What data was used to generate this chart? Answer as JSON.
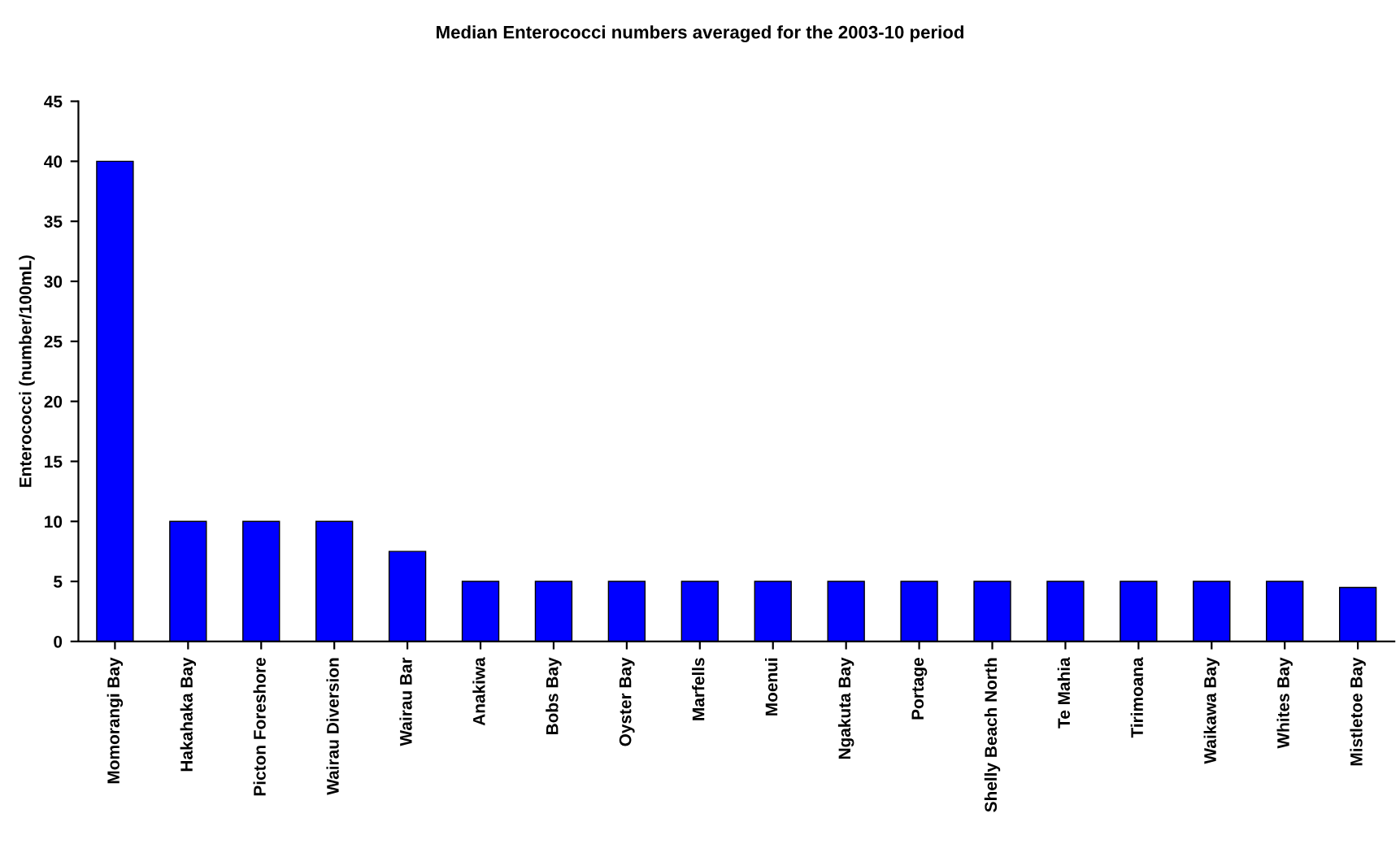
{
  "chart_data": {
    "type": "bar",
    "title": "Median Enterococci numbers averaged for the 2003-10 period",
    "ylabel": "Enterococci (number/100mL)",
    "categories": [
      "Momorangi Bay",
      "Hakahaka Bay",
      "Picton Foreshore",
      "Wairau Diversion",
      "Wairau Bar",
      "Anakiwa",
      "Bobs Bay",
      "Oyster Bay",
      "Marfells",
      "Moenui",
      "Ngakuta Bay",
      "Portage",
      "Shelly Beach North",
      "Te Mahia",
      "Tirimoana",
      "Waikawa Bay",
      "Whites Bay",
      "Mistletoe Bay"
    ],
    "values": [
      40,
      10,
      10,
      10,
      7.5,
      5,
      5,
      5,
      5,
      5,
      5,
      5,
      5,
      5,
      5,
      5,
      5,
      4.5
    ],
    "color": "#0000ff",
    "ylim": [
      0,
      45
    ],
    "yticks": [
      0,
      5,
      10,
      15,
      20,
      25,
      30,
      35,
      40,
      45
    ],
    "grid": false,
    "legend": false
  }
}
